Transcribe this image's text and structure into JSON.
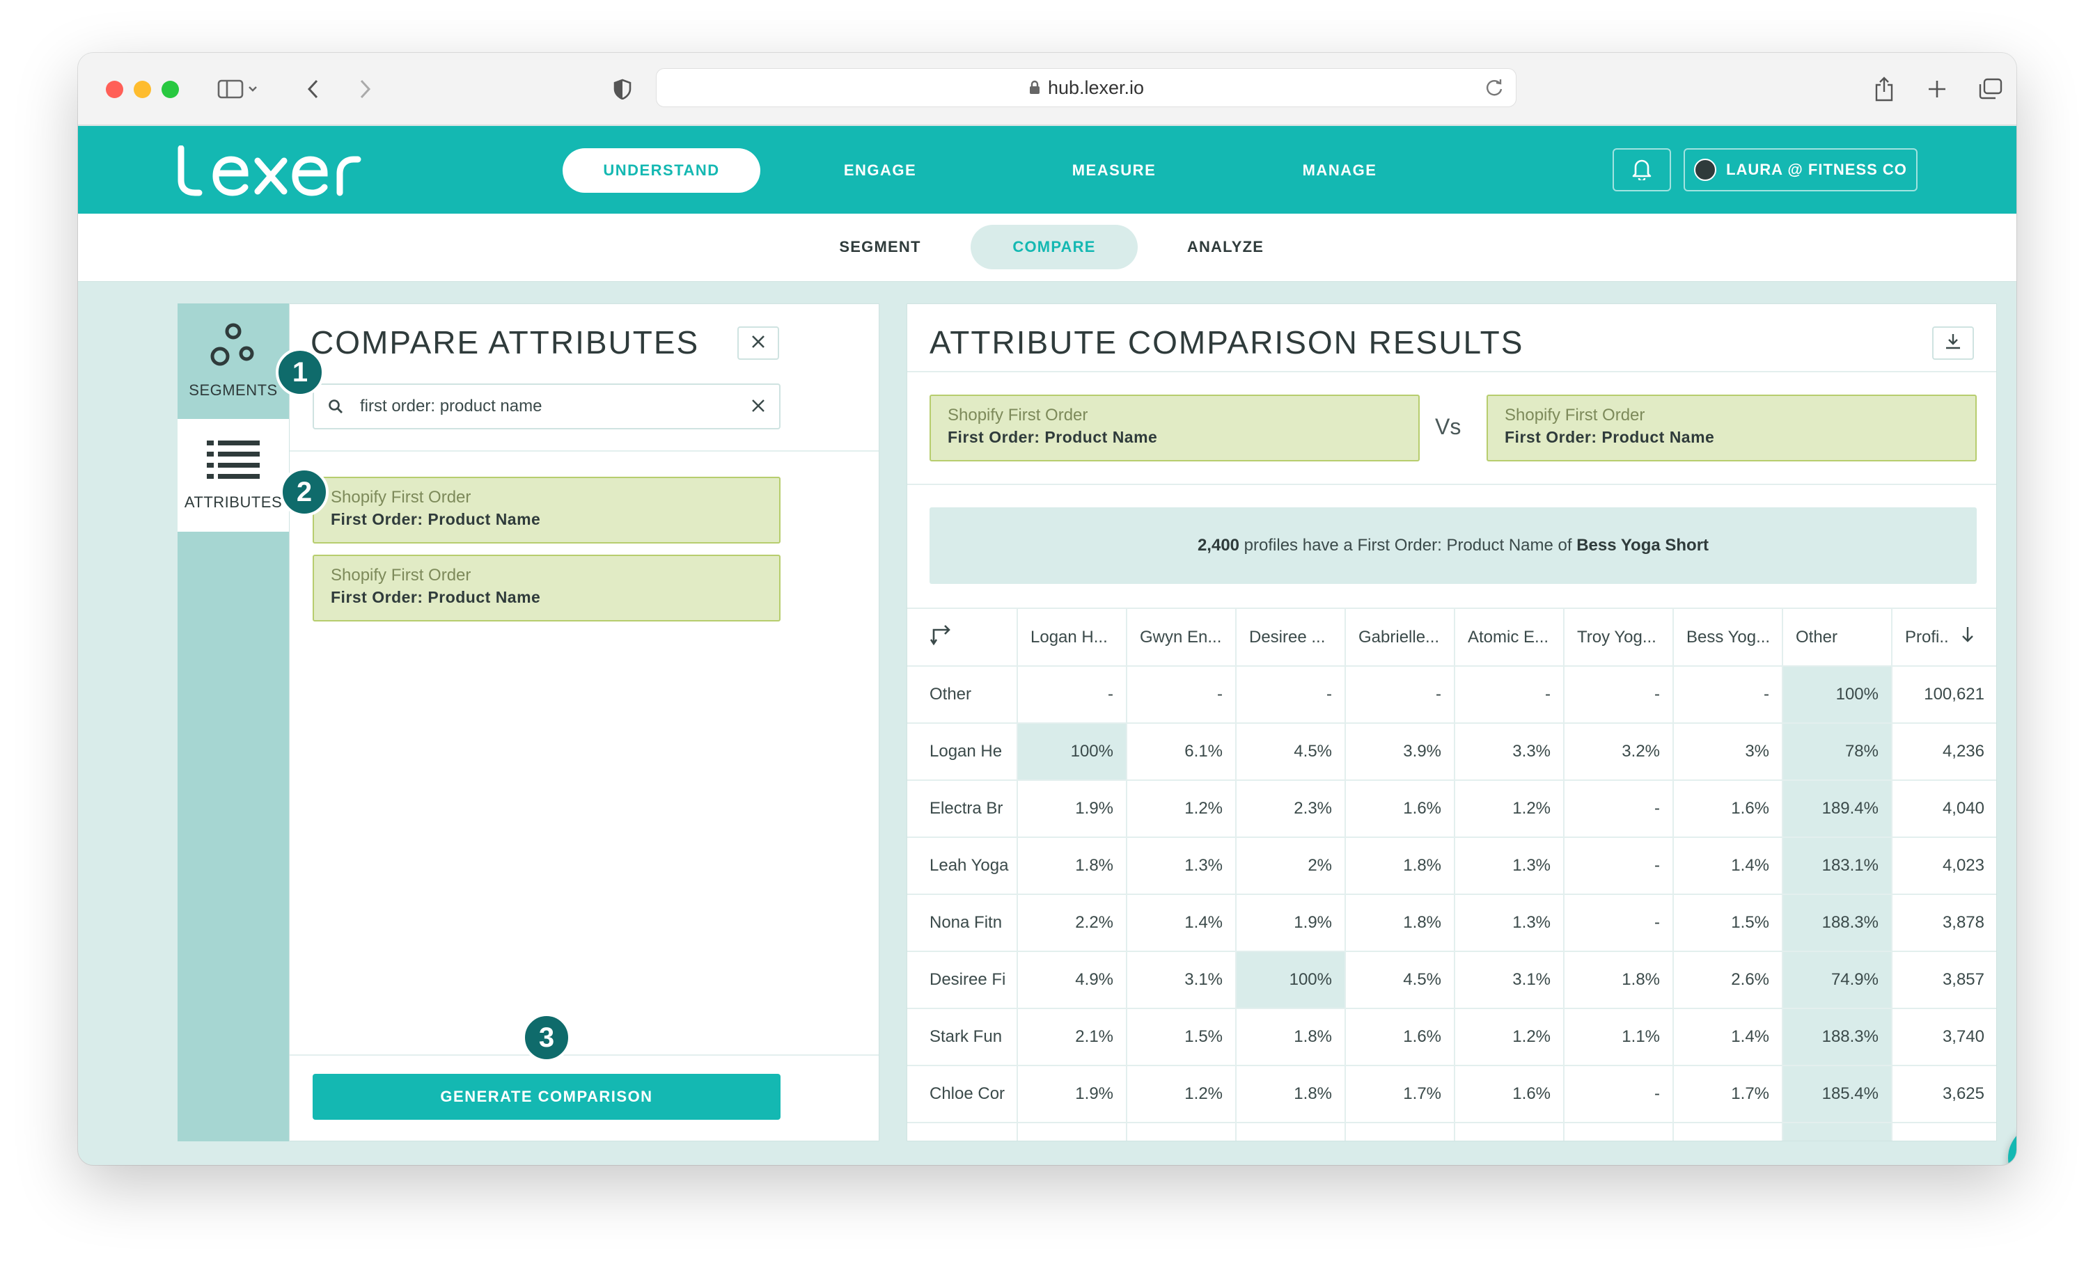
{
  "browser": {
    "url": "hub.lexer.io"
  },
  "brand": {
    "logo_text": "lexer",
    "accent": "#14b8b2"
  },
  "nav": {
    "items": [
      {
        "label": "UNDERSTAND",
        "active": true
      },
      {
        "label": "ENGAGE",
        "active": false
      },
      {
        "label": "MEASURE",
        "active": false
      },
      {
        "label": "MANAGE",
        "active": false
      }
    ],
    "user_label": "LAURA @ FITNESS CO"
  },
  "subnav": {
    "items": [
      {
        "label": "SEGMENT",
        "active": false
      },
      {
        "label": "COMPARE",
        "active": true
      },
      {
        "label": "ANALYZE",
        "active": false
      }
    ]
  },
  "sidebar": {
    "segments_label": "SEGMENTS",
    "attributes_label": "ATTRIBUTES"
  },
  "compare_panel": {
    "title": "COMPARE ATTRIBUTES",
    "search_value": "first order: product name",
    "cards": [
      {
        "category": "Shopify First Order",
        "name": "First Order: Product Name"
      },
      {
        "category": "Shopify First Order",
        "name": "First Order: Product Name"
      }
    ],
    "generate_label": "GENERATE COMPARISON"
  },
  "steps": [
    "1",
    "2",
    "3"
  ],
  "results": {
    "title": "ATTRIBUTE COMPARISON RESULTS",
    "left": {
      "category": "Shopify First Order",
      "name": "First Order: Product Name"
    },
    "vs_label": "Vs",
    "right": {
      "category": "Shopify First Order",
      "name": "First Order: Product Name"
    },
    "summary": {
      "count": "2,400",
      "mid": " profiles have a First Order: Product Name of ",
      "value": "Bess Yoga Short"
    },
    "columns": [
      "Logan H...",
      "Gwyn En...",
      "Desiree ...",
      "Gabrielle...",
      "Atomic E...",
      "Troy Yog...",
      "Bess Yog...",
      "Other",
      "Profi.."
    ],
    "rows": [
      {
        "label": "Other",
        "cells": [
          "-",
          "-",
          "-",
          "-",
          "-",
          "-",
          "-",
          "100%",
          "100,621"
        ],
        "hl": [
          7
        ]
      },
      {
        "label": "Logan He",
        "cells": [
          "100%",
          "6.1%",
          "4.5%",
          "3.9%",
          "3.3%",
          "3.2%",
          "3%",
          "78%",
          "4,236"
        ],
        "hl": [
          0,
          7
        ]
      },
      {
        "label": "Electra Br",
        "cells": [
          "1.9%",
          "1.2%",
          "2.3%",
          "1.6%",
          "1.2%",
          "-",
          "1.6%",
          "189.4%",
          "4,040"
        ],
        "hl": [
          7
        ]
      },
      {
        "label": "Leah Yoga",
        "cells": [
          "1.8%",
          "1.3%",
          "2%",
          "1.8%",
          "1.3%",
          "-",
          "1.4%",
          "183.1%",
          "4,023"
        ],
        "hl": [
          7
        ]
      },
      {
        "label": "Nona Fitn",
        "cells": [
          "2.2%",
          "1.4%",
          "1.9%",
          "1.8%",
          "1.3%",
          "-",
          "1.5%",
          "188.3%",
          "3,878"
        ],
        "hl": [
          7
        ]
      },
      {
        "label": "Desiree Fi",
        "cells": [
          "4.9%",
          "3.1%",
          "100%",
          "4.5%",
          "3.1%",
          "1.8%",
          "2.6%",
          "74.9%",
          "3,857"
        ],
        "hl": [
          2,
          7
        ]
      },
      {
        "label": "Stark Fun",
        "cells": [
          "2.1%",
          "1.5%",
          "1.8%",
          "1.6%",
          "1.2%",
          "1.1%",
          "1.4%",
          "188.3%",
          "3,740"
        ],
        "hl": [
          7
        ]
      },
      {
        "label": "Chloe Cor",
        "cells": [
          "1.9%",
          "1.2%",
          "1.8%",
          "1.7%",
          "1.6%",
          "-",
          "1.7%",
          "185.4%",
          "3,625"
        ],
        "hl": [
          7
        ]
      }
    ]
  }
}
